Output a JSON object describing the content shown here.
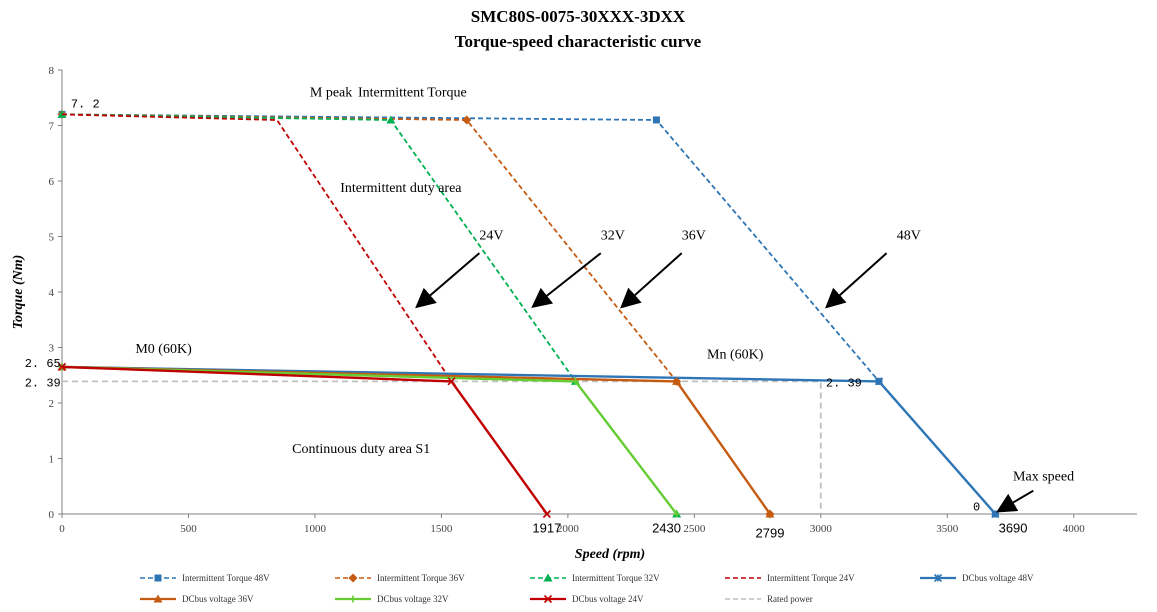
{
  "chart_data": {
    "type": "line",
    "title": "SMC80S-0075-30XXX-3DXX",
    "subtitle": "Torque-speed characteristic curve",
    "xlabel": "Speed (rpm)",
    "ylabel": "Torque (Nm)",
    "xlim": [
      0,
      4250
    ],
    "ylim": [
      0,
      8
    ],
    "xticks": [
      0,
      500,
      1000,
      1500,
      2000,
      2500,
      3000,
      3500,
      4000
    ],
    "yticks": [
      0,
      1,
      2,
      3,
      4,
      5,
      6,
      7,
      8
    ],
    "grid": false,
    "legend_position": "bottom",
    "series": [
      {
        "name": "Intermittent Torque 48V",
        "color": "#2E75B6",
        "dash": true,
        "marker": "square",
        "points": [
          [
            0,
            7.2
          ],
          [
            2350,
            7.1
          ],
          [
            3230,
            2.39
          ],
          [
            3690,
            0
          ]
        ]
      },
      {
        "name": "Intermittent Torque 36V",
        "color": "#C55A11",
        "dash": true,
        "marker": "diamond",
        "points": [
          [
            0,
            7.2
          ],
          [
            1600,
            7.1
          ],
          [
            2430,
            2.39
          ],
          [
            2799,
            0
          ]
        ]
      },
      {
        "name": "Intermittent Torque 32V",
        "color": "#00B050",
        "dash": true,
        "marker": "triangle",
        "points": [
          [
            0,
            7.2
          ],
          [
            1300,
            7.1
          ],
          [
            2030,
            2.39
          ],
          [
            2430,
            0
          ]
        ]
      },
      {
        "name": "Intermittent Torque 24V",
        "color": "#C00000",
        "dash": true,
        "marker": "none",
        "points": [
          [
            0,
            7.2
          ],
          [
            850,
            7.1
          ],
          [
            1540,
            2.39
          ],
          [
            1917,
            0
          ]
        ]
      },
      {
        "name": "DCbus voltage 48V",
        "color": "#2E75B6",
        "dash": false,
        "marker": "star",
        "points": [
          [
            0,
            2.65
          ],
          [
            3230,
            2.39
          ],
          [
            3690,
            0
          ]
        ]
      },
      {
        "name": "DCbus voltage 36V",
        "color": "#C55A11",
        "dash": false,
        "marker": "triangle",
        "points": [
          [
            0,
            2.65
          ],
          [
            2430,
            2.39
          ],
          [
            2799,
            0
          ]
        ]
      },
      {
        "name": "DCbus voltage 32V",
        "color": "#66CC33",
        "dash": false,
        "marker": "cross",
        "points": [
          [
            0,
            2.65
          ],
          [
            2030,
            2.39
          ],
          [
            2430,
            0
          ]
        ]
      },
      {
        "name": "DCbus voltage 24V",
        "color": "#C00000",
        "dash": false,
        "marker": "x",
        "points": [
          [
            0,
            2.65
          ],
          [
            1540,
            2.39
          ],
          [
            1917,
            0
          ]
        ]
      },
      {
        "name": "Rated power",
        "color": "#BFBFBF",
        "dash": true,
        "marker": "none",
        "points": [
          [
            0,
            2.39
          ],
          [
            3000,
            2.39
          ],
          [
            3000,
            0
          ]
        ]
      }
    ],
    "annotations": [
      {
        "text": "M peak",
        "x": 980,
        "y": 7.52,
        "style": "ann",
        "anchor": "start"
      },
      {
        "text": "Intermittent Torque",
        "x": 1170,
        "y": 7.52,
        "style": "ann",
        "anchor": "start"
      },
      {
        "text": "Intermittent duty area",
        "x": 1100,
        "y": 5.8,
        "style": "ann",
        "anchor": "start"
      },
      {
        "text": "24V",
        "x": 1650,
        "y": 4.95,
        "style": "ann",
        "anchor": "start"
      },
      {
        "text": "32V",
        "x": 2130,
        "y": 4.95,
        "style": "ann",
        "anchor": "start"
      },
      {
        "text": "36V",
        "x": 2450,
        "y": 4.95,
        "style": "ann",
        "anchor": "start"
      },
      {
        "text": "48V",
        "x": 3300,
        "y": 4.95,
        "style": "ann",
        "anchor": "start"
      },
      {
        "text": "M0 (60K)",
        "x": 290,
        "y": 2.9,
        "style": "ann",
        "anchor": "start"
      },
      {
        "text": "Mn (60K)",
        "x": 2550,
        "y": 2.8,
        "style": "ann",
        "anchor": "start"
      },
      {
        "text": "Continuous duty area S1",
        "x": 910,
        "y": 1.1,
        "style": "ann",
        "anchor": "start"
      },
      {
        "text": "Max speed",
        "x": 3760,
        "y": 0.6,
        "style": "ann",
        "anchor": "start"
      },
      {
        "text": "7. 2",
        "x": 35,
        "y": 7.32,
        "style": "ann-num",
        "anchor": "start"
      },
      {
        "text": "2. 65",
        "x": -5,
        "y": 2.65,
        "style": "ann-num",
        "anchor": "end"
      },
      {
        "text": "2. 39",
        "x": -5,
        "y": 2.3,
        "style": "ann-num",
        "anchor": "end"
      },
      {
        "text": "2. 39",
        "x": 3020,
        "y": 2.3,
        "style": "ann-num",
        "anchor": "start"
      },
      {
        "text": "0",
        "x": 3630,
        "y": 0.06,
        "style": "ann-num",
        "anchor": "end"
      },
      {
        "text": "1917",
        "x": 1917,
        "y": -0.33,
        "style": "ann-big",
        "anchor": "middle"
      },
      {
        "text": "2430",
        "x": 2390,
        "y": -0.33,
        "style": "ann-big",
        "anchor": "middle"
      },
      {
        "text": "2799",
        "x": 2799,
        "y": -0.42,
        "style": "ann-big",
        "anchor": "middle"
      },
      {
        "text": "3690",
        "x": 3760,
        "y": -0.33,
        "style": "ann-big",
        "anchor": "middle"
      }
    ],
    "arrows": [
      {
        "label": "24V",
        "from": [
          1650,
          4.7
        ],
        "to": [
          1420,
          3.8
        ]
      },
      {
        "label": "32V",
        "from": [
          2130,
          4.7
        ],
        "to": [
          1880,
          3.8
        ]
      },
      {
        "label": "36V",
        "from": [
          2450,
          4.7
        ],
        "to": [
          2230,
          3.8
        ]
      },
      {
        "label": "48V",
        "from": [
          3260,
          4.7
        ],
        "to": [
          3040,
          3.8
        ]
      },
      {
        "label": "Max speed",
        "from": [
          3840,
          0.42
        ],
        "to": [
          3720,
          0.1
        ]
      }
    ]
  }
}
